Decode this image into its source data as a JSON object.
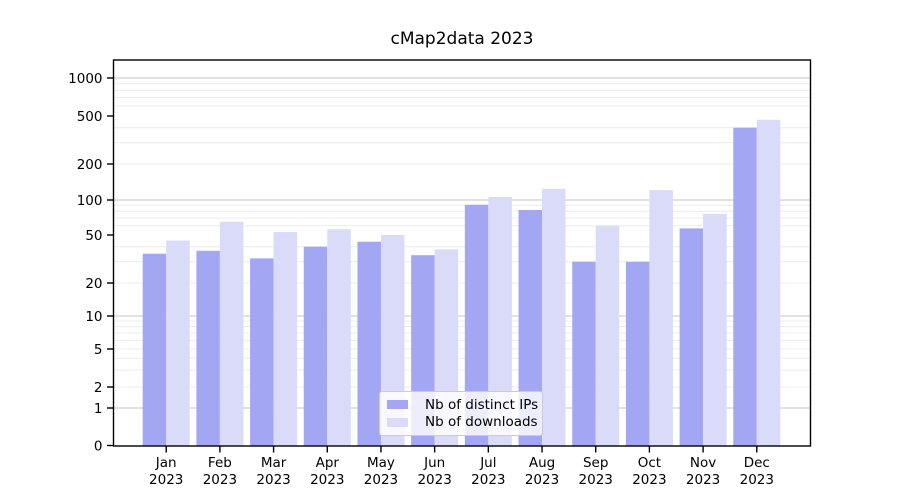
{
  "title": "cMap2data 2023",
  "chart_data": {
    "type": "bar",
    "title": "cMap2data 2023",
    "categories": [
      {
        "month": "Jan",
        "year": "2023"
      },
      {
        "month": "Feb",
        "year": "2023"
      },
      {
        "month": "Mar",
        "year": "2023"
      },
      {
        "month": "Apr",
        "year": "2023"
      },
      {
        "month": "May",
        "year": "2023"
      },
      {
        "month": "Jun",
        "year": "2023"
      },
      {
        "month": "Jul",
        "year": "2023"
      },
      {
        "month": "Aug",
        "year": "2023"
      },
      {
        "month": "Sep",
        "year": "2023"
      },
      {
        "month": "Oct",
        "year": "2023"
      },
      {
        "month": "Nov",
        "year": "2023"
      },
      {
        "month": "Dec",
        "year": "2023"
      }
    ],
    "series": [
      {
        "name": "Nb of distinct IPs",
        "color": "#a3a7f3",
        "values": [
          35,
          37,
          32,
          40,
          44,
          34,
          91,
          82,
          30,
          30,
          57,
          400
        ]
      },
      {
        "name": "Nb of downloads",
        "color": "#d9dbf9",
        "values": [
          45,
          65,
          53,
          56,
          50,
          38,
          106,
          124,
          60,
          121,
          76,
          465
        ]
      }
    ],
    "xlabel": "",
    "ylabel": "",
    "yscale": "asinh (log-like, linear near 0)",
    "yticks": [
      0,
      1,
      2,
      5,
      10,
      20,
      50,
      100,
      200,
      500,
      1000
    ],
    "ylim": [
      0,
      1500
    ],
    "grid": "horizontal, major on decades, faint minors on log subdivisions",
    "legend_position": "lower center",
    "colors": {
      "major_grid": "#c6c6c6",
      "minor_grid": "#ececec",
      "axis": "#000000",
      "text": "#000000"
    }
  }
}
